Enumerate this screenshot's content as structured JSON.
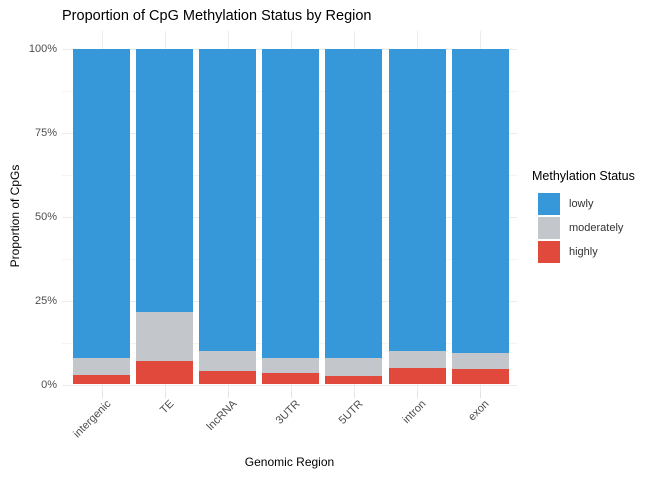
{
  "chart_data": {
    "type": "bar",
    "stacked": true,
    "units": "percent",
    "title": "Proportion of CpG Methylation Status by Region",
    "xlabel": "Genomic Region",
    "ylabel": "Proportion of CpGs",
    "categories": [
      "intergenic",
      "TE",
      "lncRNA",
      "3UTR",
      "5UTR",
      "intron",
      "exon"
    ],
    "series": [
      {
        "name": "lowly",
        "color": "#3697D9",
        "values": [
          92.2,
          78.5,
          89.9,
          92.1,
          92.1,
          90.0,
          90.6
        ]
      },
      {
        "name": "moderately",
        "color": "#C3C7CB",
        "values": [
          4.9,
          14.4,
          6.0,
          4.4,
          5.4,
          5.1,
          4.9
        ]
      },
      {
        "name": "highly",
        "color": "#E1493C",
        "values": [
          2.9,
          7.1,
          4.1,
          3.5,
          2.5,
          4.9,
          4.5
        ]
      }
    ],
    "stack_order_bottom_to_top": [
      "highly",
      "moderately",
      "lowly"
    ],
    "legend": {
      "title": "Methylation Status",
      "entries": [
        "lowly",
        "moderately",
        "highly"
      ],
      "position": "right"
    },
    "y_ticks": [
      {
        "pct": 0,
        "label": "0%"
      },
      {
        "pct": 25,
        "label": "25%"
      },
      {
        "pct": 50,
        "label": "50%"
      },
      {
        "pct": 75,
        "label": "75%"
      },
      {
        "pct": 100,
        "label": "100%"
      }
    ],
    "y_minor_ticks": [
      12.5,
      37.5,
      62.5,
      87.5
    ],
    "ylim": [
      0,
      100
    ],
    "grid": true,
    "background": "#ffffff"
  }
}
